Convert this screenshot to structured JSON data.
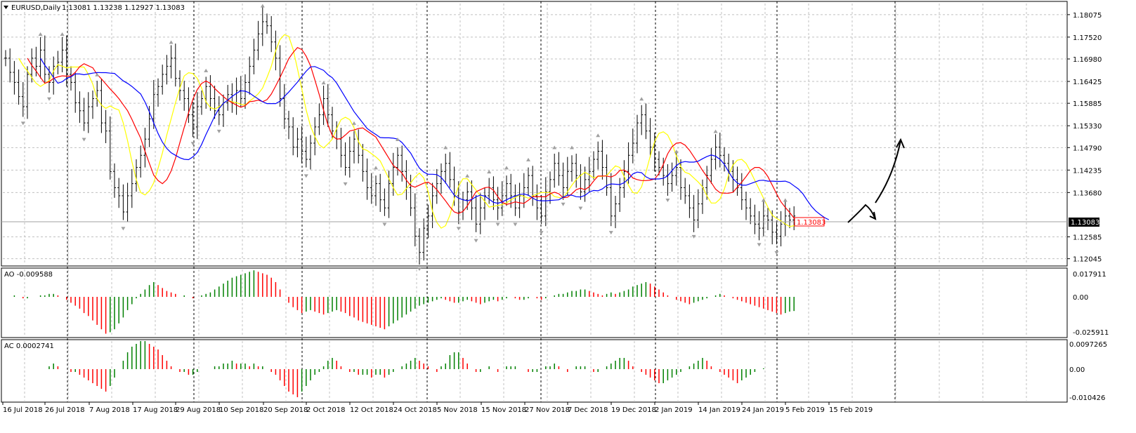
{
  "window": {
    "symbol_label": "EURUSD,Daily",
    "ohlc_label": "1.13081 1.13238 1.12927 1.13083"
  },
  "colors": {
    "background": "#ffffff",
    "grid": "#c0c0c0",
    "bars": "#000000",
    "ma_fast": "#ffff00",
    "ma_mid": "#ff0000",
    "ma_slow": "#0000ff",
    "ao_up": "#008000",
    "ao_down": "#ff0000",
    "price_label_border": "#ff0000",
    "current_price_bg": "#000000",
    "current_price_text": "#ffffff",
    "fractal": "#a0a0a0"
  },
  "chart_data": [
    {
      "type": "ohlc",
      "name": "main",
      "price_ticks": [
        "1.18075",
        "1.17520",
        "1.16980",
        "1.16425",
        "1.15885",
        "1.15330",
        "1.14790",
        "1.14235",
        "1.13680",
        "1.12585",
        "1.12045"
      ],
      "current_price": "1.13083",
      "marker_price": "1.13083",
      "x_labels": [
        "16 Jul 2018",
        "26 Jul 2018",
        "7 Aug 2018",
        "17 Aug 2018",
        "29 Aug 2018",
        "10 Sep 2018",
        "20 Sep 2018",
        "2 Oct 2018",
        "12 Oct 2018",
        "24 Oct 2018",
        "5 Nov 2018",
        "15 Nov 2018",
        "27 Nov 2018",
        "7 Dec 2018",
        "19 Dec 2018",
        "2 Jan 2019",
        "14 Jan 2019",
        "24 Jan 2019",
        "5 Feb 2019",
        "15 Feb 2019"
      ],
      "close": [
        1.17,
        1.1665,
        1.164,
        1.1605,
        1.158,
        1.166,
        1.17,
        1.168,
        1.172,
        1.166,
        1.164,
        1.168,
        1.169,
        1.172,
        1.166,
        1.164,
        1.159,
        1.157,
        1.154,
        1.158,
        1.16,
        1.162,
        1.154,
        1.152,
        1.142,
        1.138,
        1.136,
        1.132,
        1.136,
        1.139,
        1.143,
        1.146,
        1.15,
        1.155,
        1.161,
        1.163,
        1.166,
        1.168,
        1.17,
        1.165,
        1.162,
        1.16,
        1.156,
        1.153,
        1.158,
        1.16,
        1.163,
        1.16,
        1.157,
        1.156,
        1.159,
        1.161,
        1.159,
        1.162,
        1.16,
        1.164,
        1.168,
        1.172,
        1.176,
        1.179,
        1.178,
        1.174,
        1.17,
        1.16,
        1.155,
        1.153,
        1.148,
        1.15,
        1.147,
        1.145,
        1.149,
        1.153,
        1.156,
        1.16,
        1.156,
        1.152,
        1.15,
        1.146,
        1.143,
        1.147,
        1.15,
        1.146,
        1.142,
        1.138,
        1.136,
        1.139,
        1.135,
        1.133,
        1.139,
        1.143,
        1.146,
        1.142,
        1.138,
        1.133,
        1.126,
        1.122,
        1.128,
        1.131,
        1.136,
        1.139,
        1.142,
        1.144,
        1.14,
        1.136,
        1.132,
        1.135,
        1.137,
        1.133,
        1.129,
        1.133,
        1.136,
        1.138,
        1.135,
        1.133,
        1.136,
        1.139,
        1.136,
        1.133,
        1.136,
        1.138,
        1.141,
        1.136,
        1.133,
        1.131,
        1.137,
        1.14,
        1.144,
        1.141,
        1.138,
        1.142,
        1.144,
        1.141,
        1.137,
        1.14,
        1.142,
        1.145,
        1.147,
        1.143,
        1.138,
        1.131,
        1.134,
        1.138,
        1.142,
        1.146,
        1.149,
        1.154,
        1.156,
        1.152,
        1.148,
        1.145,
        1.143,
        1.141,
        1.139,
        1.141,
        1.143,
        1.138,
        1.136,
        1.133,
        1.13,
        1.134,
        1.138,
        1.141,
        1.145,
        1.148,
        1.146,
        1.144,
        1.142,
        1.14,
        1.138,
        1.135,
        1.133,
        1.131,
        1.129,
        1.128,
        1.131,
        1.13,
        1.127,
        1.126,
        1.129,
        1.131,
        1.13,
        1.131
      ],
      "annotation": "arrows"
    },
    {
      "type": "histogram",
      "name": "AO",
      "label": "AO -0.009588",
      "ticks": [
        "0.017911",
        "0.00",
        "-0.025911"
      ],
      "values": [
        0.0,
        0.0,
        0.001,
        0.0,
        -0.001,
        -0.001,
        0.0,
        0.0,
        0.001,
        0.001,
        0.002,
        0.002,
        0.001,
        0.0,
        -0.002,
        -0.004,
        -0.006,
        -0.008,
        -0.011,
        -0.013,
        -0.016,
        -0.019,
        -0.022,
        -0.025,
        -0.024,
        -0.022,
        -0.018,
        -0.014,
        -0.009,
        -0.005,
        -0.001,
        0.002,
        0.005,
        0.008,
        0.01,
        0.008,
        0.006,
        0.004,
        0.003,
        0.002,
        0.0,
        0.001,
        0.0,
        -0.001,
        0.0,
        0.001,
        0.002,
        0.003,
        0.005,
        0.007,
        0.009,
        0.011,
        0.013,
        0.014,
        0.015,
        0.016,
        0.017,
        0.018,
        0.017,
        0.016,
        0.015,
        0.013,
        0.01,
        0.005,
        0.0,
        -0.004,
        -0.007,
        -0.009,
        -0.011,
        -0.01,
        -0.009,
        -0.01,
        -0.011,
        -0.012,
        -0.011,
        -0.01,
        -0.009,
        -0.01,
        -0.011,
        -0.013,
        -0.014,
        -0.016,
        -0.017,
        -0.018,
        -0.019,
        -0.02,
        -0.021,
        -0.022,
        -0.02,
        -0.018,
        -0.016,
        -0.014,
        -0.012,
        -0.01,
        -0.008,
        -0.006,
        -0.005,
        -0.004,
        -0.003,
        -0.002,
        -0.001,
        -0.002,
        -0.003,
        -0.004,
        -0.004,
        -0.003,
        -0.002,
        -0.003,
        -0.004,
        -0.005,
        -0.004,
        -0.003,
        -0.002,
        -0.003,
        -0.002,
        -0.001,
        0.0,
        -0.001,
        -0.002,
        -0.002,
        -0.001,
        0.0,
        -0.001,
        -0.002,
        -0.001,
        0.0,
        0.001,
        0.002,
        0.002,
        0.003,
        0.004,
        0.004,
        0.005,
        0.005,
        0.004,
        0.003,
        0.002,
        0.001,
        0.002,
        0.003,
        0.002,
        0.003,
        0.004,
        0.005,
        0.007,
        0.008,
        0.009,
        0.01,
        0.009,
        0.007,
        0.005,
        0.003,
        0.001,
        0.0,
        -0.002,
        -0.003,
        -0.004,
        -0.005,
        -0.004,
        -0.003,
        -0.002,
        -0.001,
        0.0,
        0.001,
        0.002,
        0.001,
        0.0,
        -0.001,
        -0.002,
        -0.003,
        -0.004,
        -0.005,
        -0.006,
        -0.007,
        -0.008,
        -0.009,
        -0.01,
        -0.011,
        -0.012,
        -0.011,
        -0.01,
        -0.0096
      ]
    },
    {
      "type": "histogram",
      "name": "AC",
      "label": "AC 0.0002741",
      "ticks": [
        "0.0097265",
        "0.00",
        "-0.010426"
      ],
      "values": [
        0.0,
        0.0,
        0.0,
        0.0,
        0.0,
        0.0,
        0.0,
        0.0,
        0.0,
        0.0,
        0.001,
        0.002,
        0.001,
        0.0,
        0.0,
        -0.001,
        -0.001,
        -0.002,
        -0.003,
        -0.004,
        -0.005,
        -0.006,
        -0.007,
        -0.008,
        -0.006,
        -0.003,
        0.0,
        0.003,
        0.006,
        0.008,
        0.009,
        0.01,
        0.01,
        0.009,
        0.008,
        0.007,
        0.005,
        0.003,
        0.001,
        0.0,
        -0.001,
        -0.001,
        -0.002,
        -0.002,
        -0.001,
        0.0,
        0.0,
        0.0,
        0.001,
        0.001,
        0.002,
        0.002,
        0.003,
        0.002,
        0.002,
        0.002,
        0.001,
        0.002,
        0.001,
        0.001,
        0.0,
        -0.001,
        -0.002,
        -0.004,
        -0.006,
        -0.008,
        -0.009,
        -0.01,
        -0.008,
        -0.006,
        -0.004,
        -0.002,
        -0.001,
        0.001,
        0.003,
        0.004,
        0.003,
        0.001,
        0.0,
        -0.001,
        -0.001,
        -0.002,
        -0.002,
        -0.002,
        -0.003,
        -0.002,
        -0.002,
        -0.003,
        -0.002,
        -0.001,
        0.0,
        0.001,
        0.002,
        0.003,
        0.004,
        0.003,
        0.002,
        0.001,
        0.0,
        -0.001,
        0.001,
        0.002,
        0.005,
        0.006,
        0.006,
        0.004,
        0.002,
        0.0,
        -0.001,
        -0.001,
        0.0,
        0.001,
        0.0,
        -0.001,
        0.0,
        0.001,
        0.001,
        0.001,
        0.0,
        0.0,
        -0.001,
        -0.001,
        -0.001,
        0.0,
        0.001,
        0.001,
        0.002,
        0.001,
        0.0,
        -0.001,
        0.0,
        0.001,
        0.001,
        0.001,
        0.0,
        -0.001,
        -0.001,
        0.0,
        0.001,
        0.002,
        0.003,
        0.004,
        0.004,
        0.003,
        0.001,
        0.0,
        -0.001,
        -0.002,
        -0.003,
        -0.004,
        -0.005,
        -0.005,
        -0.004,
        -0.003,
        -0.002,
        -0.001,
        0.0,
        0.001,
        0.002,
        0.003,
        0.004,
        0.003,
        0.001,
        0.0,
        -0.001,
        -0.002,
        -0.003,
        -0.004,
        -0.005,
        -0.004,
        -0.003,
        -0.002,
        -0.001,
        0.0,
        0.0003
      ]
    }
  ]
}
